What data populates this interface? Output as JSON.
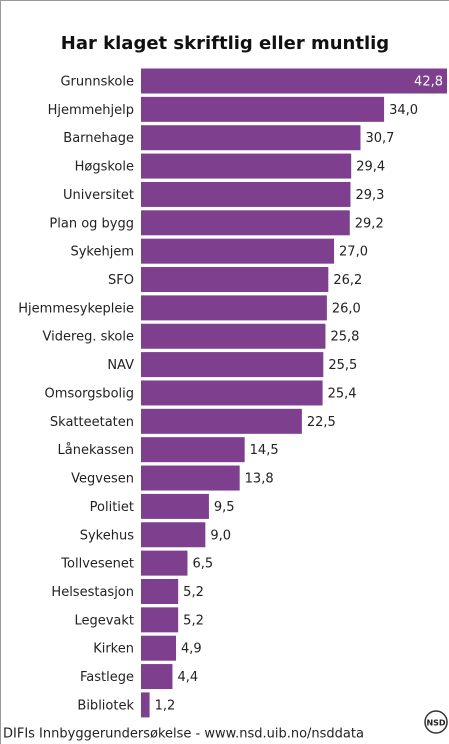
{
  "chart_data": {
    "type": "bar",
    "orientation": "horizontal",
    "title": "Har klaget skriftlig eller muntlig",
    "categories": [
      "Grunnskole",
      "Hjemmehjelp",
      "Barnehage",
      "Høgskole",
      "Universitet",
      "Plan og bygg",
      "Sykehjem",
      "SFO",
      "Hjemmesykepleie",
      "Videreg. skole",
      "NAV",
      "Omsorgsbolig",
      "Skatteetaten",
      "Lånekassen",
      "Vegvesen",
      "Politiet",
      "Sykehus",
      "Tollvesenet",
      "Helsestasjon",
      "Legevakt",
      "Kirken",
      "Fastlege",
      "Bibliotek"
    ],
    "values": [
      42.8,
      34.0,
      30.7,
      29.4,
      29.3,
      29.2,
      27.0,
      26.2,
      26.0,
      25.8,
      25.5,
      25.4,
      22.5,
      14.5,
      13.8,
      9.5,
      9.0,
      6.5,
      5.2,
      5.2,
      4.9,
      4.4,
      1.2
    ],
    "value_labels": [
      "42,8",
      "34,0",
      "30,7",
      "29,4",
      "29,3",
      "29,2",
      "27,0",
      "26,2",
      "26,0",
      "25,8",
      "25,5",
      "25,4",
      "22,5",
      "14,5",
      "13,8",
      "9,5",
      "9,0",
      "6,5",
      "5,2",
      "5,2",
      "4,9",
      "4,4",
      "1,2"
    ],
    "color": "#7d3f8e",
    "source": "DIFIs Innbyggerundersøkelse - www.nsd.uib.no/nsddata",
    "logo": "NSD"
  }
}
